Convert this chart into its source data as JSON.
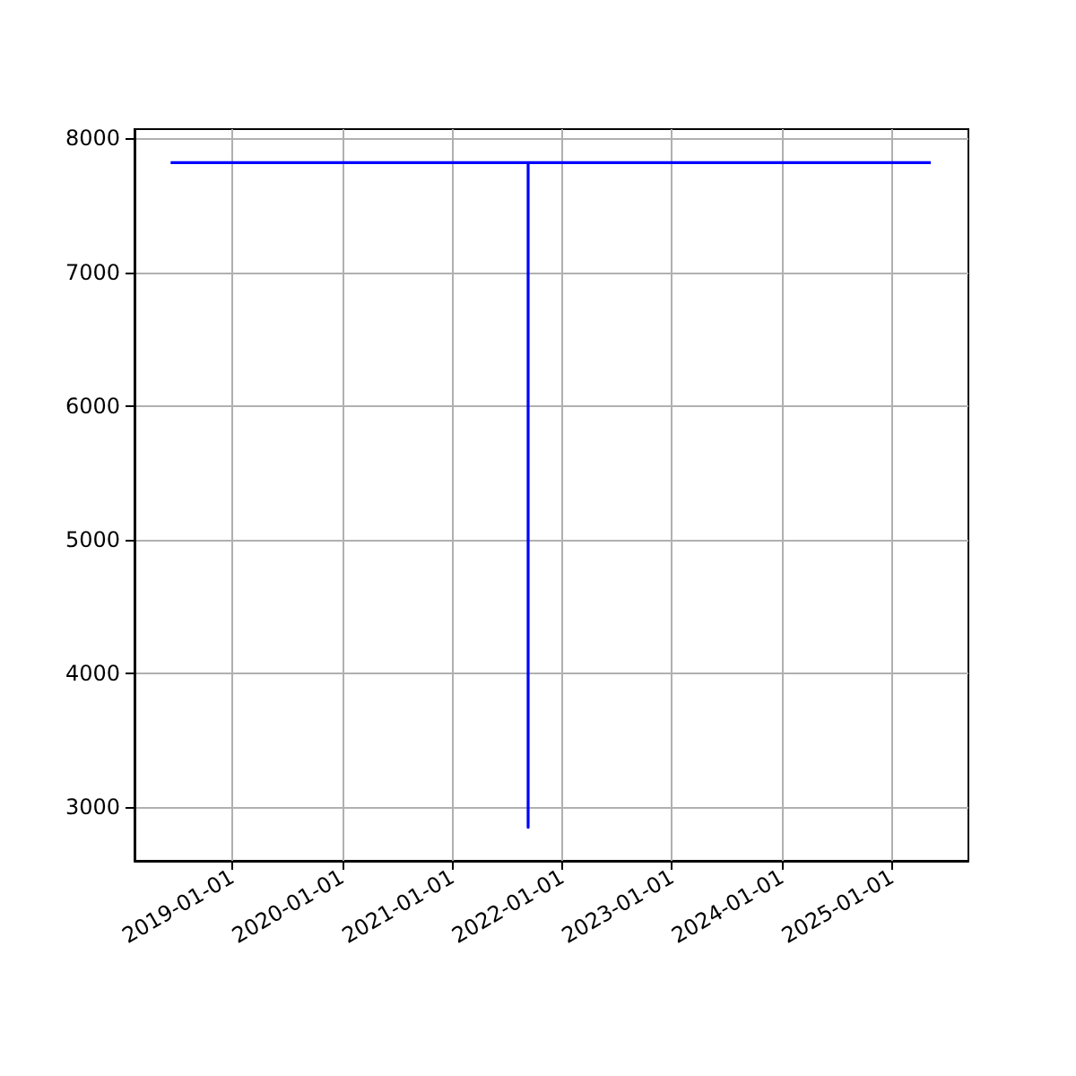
{
  "chart_data": {
    "type": "line",
    "x": [
      "2018-06-10",
      "2021-09-10",
      "2021-09-10",
      "2021-09-10",
      "2025-05-10"
    ],
    "series": [
      {
        "color": "#0000ff",
        "values": [
          7820,
          7820,
          2850,
          7820,
          7820
        ]
      }
    ],
    "xlim": [
      "2018-02-10",
      "2025-09-12"
    ],
    "xticks": [
      "2019-01-01",
      "2020-01-01",
      "2021-01-01",
      "2022-01-01",
      "2023-01-01",
      "2024-01-01",
      "2025-01-01"
    ],
    "ylim": [
      2600,
      8070
    ],
    "yticks": [
      3000,
      4000,
      5000,
      6000,
      7000,
      8000
    ],
    "grid": true,
    "marker": "none",
    "line_style": "solid"
  }
}
